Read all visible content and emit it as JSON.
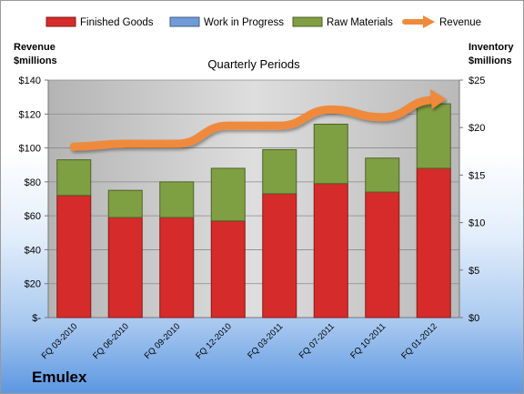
{
  "chart_data": {
    "type": "bar",
    "title": "Quarterly Periods",
    "ylabel_left": [
      "Revenue",
      "$millions"
    ],
    "ylabel_right": [
      "Inventory",
      "$millions"
    ],
    "categories": [
      "FQ 03-2010",
      "FQ 06-2010",
      "FQ 09-2010",
      "FQ 12-2010",
      "FQ 03-2011",
      "FQ 07-2011",
      "FQ 10-2011",
      "FQ 01-2012"
    ],
    "left_axis": {
      "min": 0,
      "max": 140,
      "step": 20,
      "ticks": [
        "$-",
        "$20",
        "$40",
        "$60",
        "$80",
        "$100",
        "$120",
        "$140"
      ]
    },
    "right_axis": {
      "min": 0,
      "max": 25,
      "step": 5,
      "ticks": [
        "$0",
        "$5",
        "$10",
        "$15",
        "$20",
        "$25"
      ]
    },
    "stacked": true,
    "series": [
      {
        "name": "Finished Goods",
        "color": "#d62b2b",
        "axis": "left",
        "values": [
          72,
          59,
          59,
          57,
          73,
          79,
          74,
          88
        ]
      },
      {
        "name": "Work in Progress",
        "color": "#6f9bd8",
        "axis": "left",
        "values": [
          0,
          0,
          0,
          0,
          0,
          0,
          0,
          0
        ]
      },
      {
        "name": "Raw Materials",
        "color": "#7f9f43",
        "axis": "left",
        "values": [
          21,
          16,
          21,
          31,
          26,
          35,
          20,
          38
        ]
      },
      {
        "name": "Revenue",
        "color": "#ef8a3c",
        "axis": "right",
        "kind": "line",
        "values": [
          18.0,
          18.3,
          18.3,
          20.2,
          20.2,
          21.9,
          21.1,
          22.9
        ]
      }
    ],
    "legend_position": "top",
    "grid": true
  },
  "brand": "Emulex"
}
